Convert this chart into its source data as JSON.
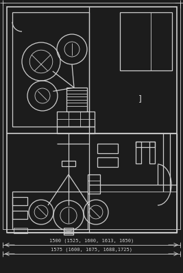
{
  "bg_color": "#1c1c1c",
  "line_color": "#d0d0d0",
  "text_color": "#d0d0d0",
  "dim_text1": "1500 (1525, 1600, 1613, 1650)",
  "dim_text2": "1575 (1600, 1675, 1688,1725)",
  "label_1": "]",
  "fig_width": 2.67,
  "fig_height": 3.99,
  "dpi": 100
}
